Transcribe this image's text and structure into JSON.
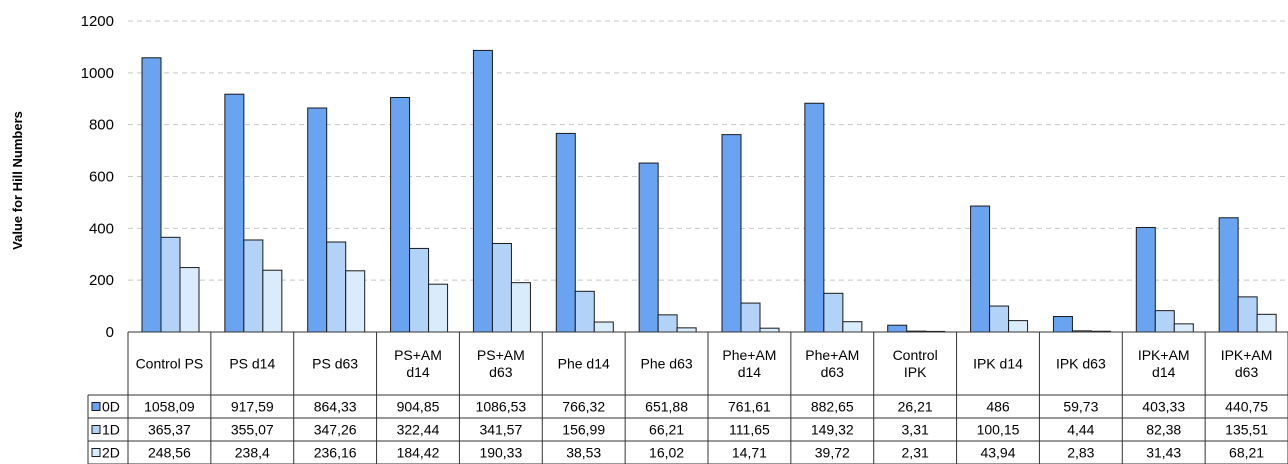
{
  "chart_data": {
    "type": "bar",
    "ylabel": "Value for Hill Numbers",
    "ylim": [
      0,
      1200
    ],
    "yticks": [
      0,
      200,
      400,
      600,
      800,
      1000,
      1200
    ],
    "grid": true,
    "legend": "data-table-left",
    "categories": [
      [
        "Control PS"
      ],
      [
        "PS d14"
      ],
      [
        "PS d63"
      ],
      [
        "PS+AM",
        "d14"
      ],
      [
        "PS+AM",
        "d63"
      ],
      [
        "Phe d14"
      ],
      [
        "Phe d63"
      ],
      [
        "Phe+AM",
        "d14"
      ],
      [
        "Phe+AM",
        "d63"
      ],
      [
        "Control",
        "IPK"
      ],
      [
        "IPK d14"
      ],
      [
        "IPK d63"
      ],
      [
        "IPK+AM",
        "d14"
      ],
      [
        "IPK+AM",
        "d63"
      ]
    ],
    "series": [
      {
        "name": "0D",
        "color": "#6aa3f0",
        "values": [
          1058.09,
          917.59,
          864.33,
          904.85,
          1086.53,
          766.32,
          651.88,
          761.61,
          882.65,
          26.21,
          486,
          59.73,
          403.33,
          440.75
        ],
        "labels": [
          "1058,09",
          "917,59",
          "864,33",
          "904,85",
          "1086,53",
          "766,32",
          "651,88",
          "761,61",
          "882,65",
          "26,21",
          "486",
          "59,73",
          "403,33",
          "440,75"
        ]
      },
      {
        "name": "1D",
        "color": "#b3d2f8",
        "values": [
          365.37,
          355.07,
          347.26,
          322.44,
          341.57,
          156.99,
          66.21,
          111.65,
          149.32,
          3.31,
          100.15,
          4.44,
          82.38,
          135.51
        ],
        "labels": [
          "365,37",
          "355,07",
          "347,26",
          "322,44",
          "341,57",
          "156,99",
          "66,21",
          "111,65",
          "149,32",
          "3,31",
          "100,15",
          "4,44",
          "82,38",
          "135,51"
        ]
      },
      {
        "name": "2D",
        "color": "#d9ecfc",
        "values": [
          248.56,
          238.4,
          236.16,
          184.42,
          190.33,
          38.53,
          16.02,
          14.71,
          39.72,
          2.31,
          43.94,
          2.83,
          31.43,
          68.21
        ],
        "labels": [
          "248,56",
          "238,4",
          "236,16",
          "184,42",
          "190,33",
          "38,53",
          "16,02",
          "14,71",
          "39,72",
          "2,31",
          "43,94",
          "2,83",
          "31,43",
          "68,21"
        ]
      }
    ]
  }
}
